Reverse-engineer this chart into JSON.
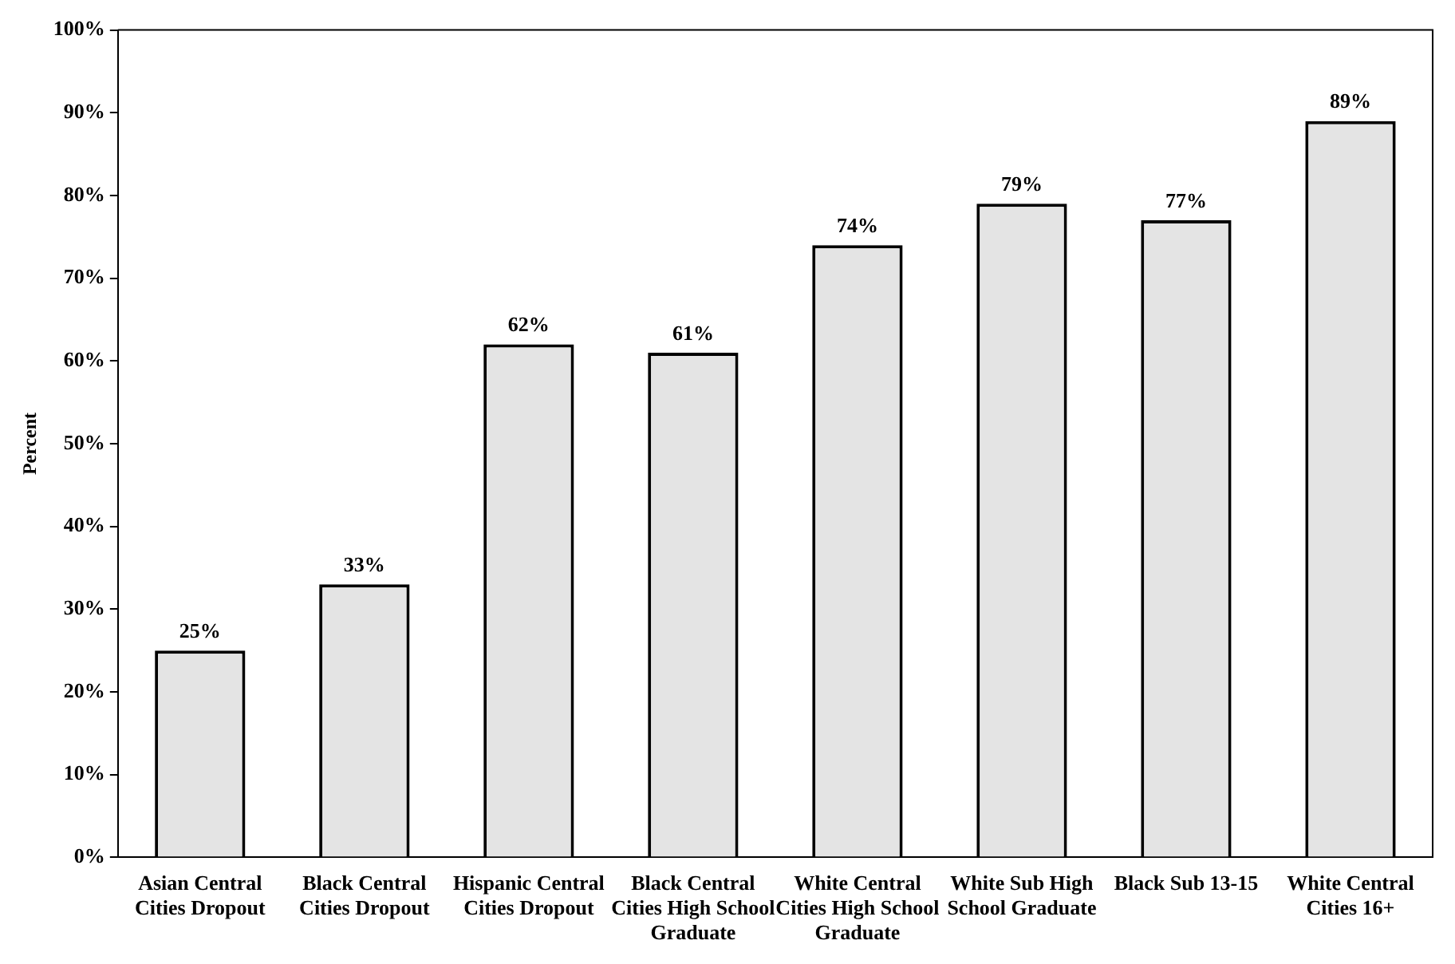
{
  "chart_data": {
    "type": "bar",
    "ylabel": "Percent",
    "categories": [
      "Asian Central Cities Dropout",
      "Black Central Cities Dropout",
      "Hispanic Central Cities Dropout",
      "Black Central Cities High School Graduate",
      "White Central Cities High School Graduate",
      "White Sub High School Graduate",
      "Black Sub 13-15",
      "White Central Cities 16+"
    ],
    "values": [
      25,
      33,
      62,
      61,
      74,
      79,
      77,
      89
    ],
    "value_labels": [
      "25%",
      "33%",
      "62%",
      "61%",
      "74%",
      "79%",
      "77%",
      "89%"
    ],
    "color": "#e4e4e4",
    "ylim": [
      0,
      100
    ],
    "yticks": [
      {
        "value": 0,
        "label": "0%"
      },
      {
        "value": 10,
        "label": "10%"
      },
      {
        "value": 20,
        "label": "20%"
      },
      {
        "value": 30,
        "label": "30%"
      },
      {
        "value": 40,
        "label": "40%"
      },
      {
        "value": 50,
        "label": "50%"
      },
      {
        "value": 60,
        "label": "60%"
      },
      {
        "value": 70,
        "label": "70%"
      },
      {
        "value": 80,
        "label": "80%"
      },
      {
        "value": 90,
        "label": "90%"
      },
      {
        "value": 100,
        "label": "100%"
      }
    ],
    "grid": false,
    "legend": false
  }
}
